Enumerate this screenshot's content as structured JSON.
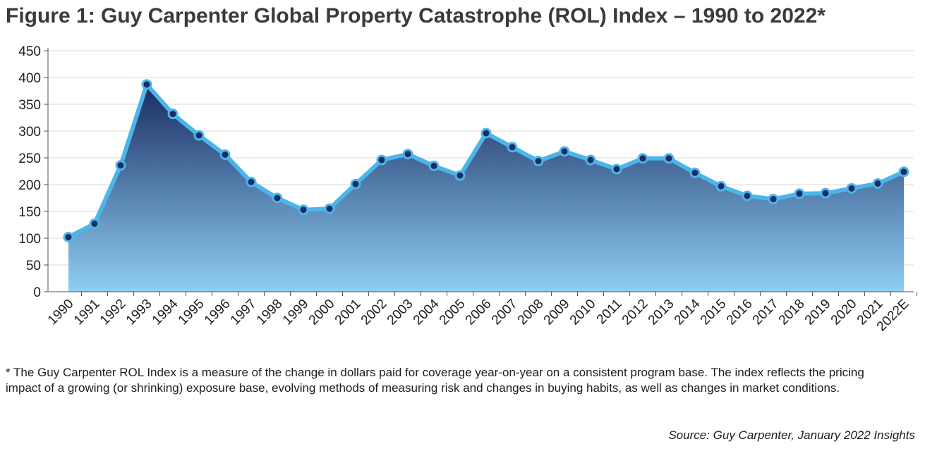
{
  "figure_title": "Figure 1: Guy Carpenter Global Property Catastrophe (ROL) Index – 1990 to 2022*",
  "footnote": "* The Guy Carpenter ROL Index is a measure of the change in dollars paid for coverage year-on-year on a consistent program base. The index reflects the pricing impact of a growing (or shrinking) exposure base, evolving methods of measuring risk and changes in buying habits, as well as changes in market conditions.",
  "source": "Source: Guy Carpenter, January 2022 Insights",
  "colors": {
    "area_top": "#1a2c63",
    "area_bottom": "#8ecff3",
    "line": "#4cb6ea",
    "marker_fill": "#1a2c63",
    "grid": "#d9d9d9",
    "axis": "#555555"
  },
  "chart_data": {
    "type": "area",
    "title": "Figure 1: Guy Carpenter Global Property Catastrophe (ROL) Index – 1990 to 2022*",
    "xlabel": "",
    "ylabel": "",
    "ylim": [
      0,
      450
    ],
    "yticks": [
      0,
      50,
      100,
      150,
      200,
      250,
      300,
      350,
      400,
      450
    ],
    "grid": true,
    "legend": "none",
    "categories": [
      "1990",
      "1991",
      "1992",
      "1993",
      "1994",
      "1995",
      "1996",
      "1997",
      "1998",
      "1999",
      "2000",
      "2001",
      "2002",
      "2003",
      "2004",
      "2005",
      "2006",
      "2007",
      "2008",
      "2009",
      "2010",
      "2011",
      "2012",
      "2013",
      "2014",
      "2015",
      "2016",
      "2017",
      "2018",
      "2019",
      "2020",
      "2021",
      "2022E"
    ],
    "series": [
      {
        "values": [
          102,
          127,
          236,
          387,
          332,
          292,
          256,
          205,
          175,
          153,
          155,
          201,
          246,
          257,
          235,
          217,
          296,
          270,
          244,
          262,
          246,
          229,
          249,
          249,
          222,
          197,
          179,
          173,
          183,
          184,
          193,
          202,
          224
        ]
      }
    ]
  }
}
